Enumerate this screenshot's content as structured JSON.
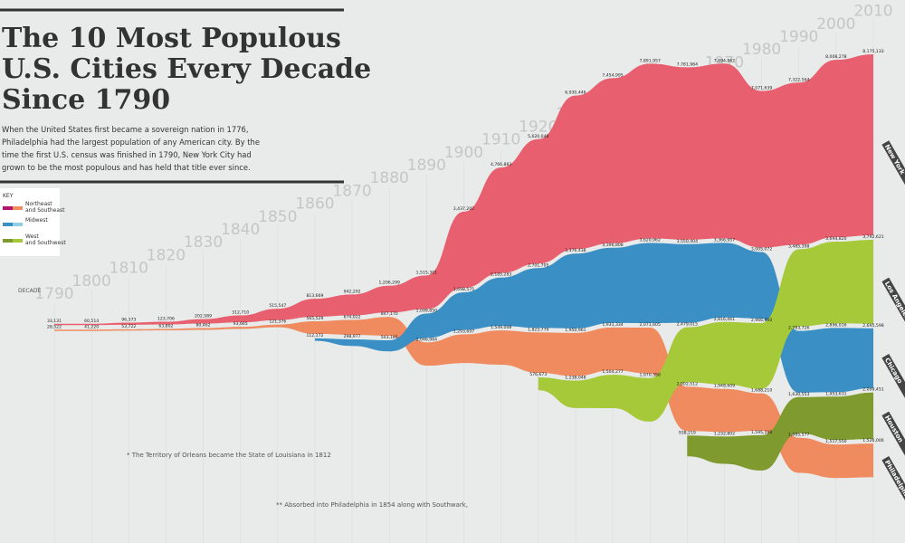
{
  "chart_data": {
    "type": "ribbon",
    "title": [
      "The 10 Most Populous",
      "U.S. Cities Every Decade",
      "Since 1790"
    ],
    "description": [
      "When the United States first became a sovereign nation in 1776,",
      "Philadelphia had the largest population of any American city. By the",
      "time the first U.S. census was finished in 1790, New York City had",
      "grown to be the most populous and has held that title ever since."
    ],
    "key": {
      "title": "KEY",
      "entries": [
        {
          "label": "Northeast and Southeast",
          "colors": [
            "#b3146b",
            "#f08a5f"
          ]
        },
        {
          "label": "Midwest",
          "colors": [
            "#3a8fc4",
            "#8fd0e6"
          ]
        },
        {
          "label": "West and Southwest",
          "colors": [
            "#7f9a2e",
            "#a6c93a"
          ]
        }
      ]
    },
    "axis_label": "DECADE",
    "footnotes": [
      "* The Territory of Orleans became the State of Louisiana in 1812",
      "** Absorbed into Philadelphia in 1854 along with Southwark,"
    ],
    "x": [
      1790,
      1800,
      1810,
      1820,
      1830,
      1840,
      1850,
      1860,
      1870,
      1880,
      1890,
      1900,
      1910,
      1920,
      1930,
      1940,
      1950,
      1960,
      1970,
      1980,
      1990,
      2000,
      2010
    ],
    "series": [
      {
        "name": "New York",
        "color": "#e8606f",
        "values": [
          33131,
          60514,
          96373,
          123706,
          202589,
          312710,
          515547,
          813669,
          942292,
          1206299,
          1515301,
          3437202,
          4766883,
          5620048,
          6930446,
          7454995,
          7891957,
          7781984,
          7894862,
          7071639,
          7322564,
          8008278,
          8175133
        ],
        "value_labels": [
          "33,131",
          "60,514",
          "96,373",
          "123,706",
          "202,589",
          "312,710",
          "515,547",
          "813,669",
          "942,292",
          "1,206,299",
          "1,515,301",
          "3,437,202",
          "4,766,883",
          "5,620,048",
          "6,930,446",
          "7,454,995",
          "7,891,957",
          "7,781,984",
          "7,894,862",
          "7,071,639",
          "7,322,564",
          "8,008,278",
          "8,175,133"
        ]
      },
      {
        "name": "Philadelphia",
        "color": "#f08a5f",
        "values": [
          28522,
          41220,
          53722,
          63802,
          80462,
          93665,
          121376,
          565529,
          674022,
          847170,
          1046964,
          1293697,
          1549008,
          1823779,
          1950961,
          1931334,
          2071605,
          2002512,
          1948609,
          1688210,
          1585577,
          1517550,
          1526006
        ],
        "value_labels": [
          "28,522",
          "41,220",
          "53,722",
          "63,802",
          "80,462",
          "93,665",
          "121,376",
          "565,529",
          "674,022",
          "847,170",
          "1,046,964",
          "1,293,697",
          "1,549,008",
          "1,823,779",
          "1,950,961",
          "1,931,334",
          "2,071,605",
          "2,002,512",
          "1,948,609",
          "1,688,210",
          "1,585,577",
          "1,517,550",
          "1,526,006"
        ]
      },
      {
        "name": "Chicago",
        "color": "#3a8fc4",
        "values": [
          null,
          null,
          null,
          null,
          null,
          null,
          null,
          112172,
          298977,
          503185,
          1099850,
          1698575,
          2185283,
          2701705,
          3376438,
          3396808,
          3620962,
          3550404,
          3366957,
          3005072,
          2783726,
          2896016,
          2695598
        ],
        "value_labels": [
          null,
          null,
          null,
          null,
          null,
          null,
          null,
          "112,172",
          "298,977",
          "503,185",
          "1,099,850",
          "1,698,575",
          "2,185,283",
          "2,701,705",
          "3,376,438",
          "3,396,808",
          "3,620,962",
          "3,550,404",
          "3,366,957",
          "3,005,072",
          "2,783,726",
          "2,896,016",
          "2,695,598"
        ]
      },
      {
        "name": "Los Angeles",
        "color": "#a6c93a",
        "values": [
          null,
          null,
          null,
          null,
          null,
          null,
          null,
          null,
          null,
          null,
          null,
          null,
          null,
          576673,
          1238048,
          1504277,
          1970358,
          2479015,
          2816061,
          2966850,
          3485398,
          3694820,
          3792621
        ],
        "value_labels": [
          null,
          null,
          null,
          null,
          null,
          null,
          null,
          null,
          null,
          null,
          null,
          null,
          null,
          "576,673",
          "1,238,048",
          "1,504,277",
          "1,970,358",
          "2,479,015",
          "2,816,061",
          "2,966,850",
          "3,485,398",
          "3,694,820",
          "3,792,621"
        ]
      },
      {
        "name": "Houston",
        "color": "#7f9a2e",
        "values": [
          null,
          null,
          null,
          null,
          null,
          null,
          null,
          null,
          null,
          null,
          null,
          null,
          null,
          null,
          null,
          null,
          null,
          938219,
          1232802,
          1595138,
          1630553,
          1953631,
          2099451
        ],
        "value_labels": [
          null,
          null,
          null,
          null,
          null,
          null,
          null,
          null,
          null,
          null,
          null,
          null,
          null,
          null,
          null,
          null,
          null,
          "938,219",
          "1,232,802",
          "1,595,138",
          "1,630,553",
          "1,953,631",
          "2,099,451"
        ]
      }
    ]
  }
}
